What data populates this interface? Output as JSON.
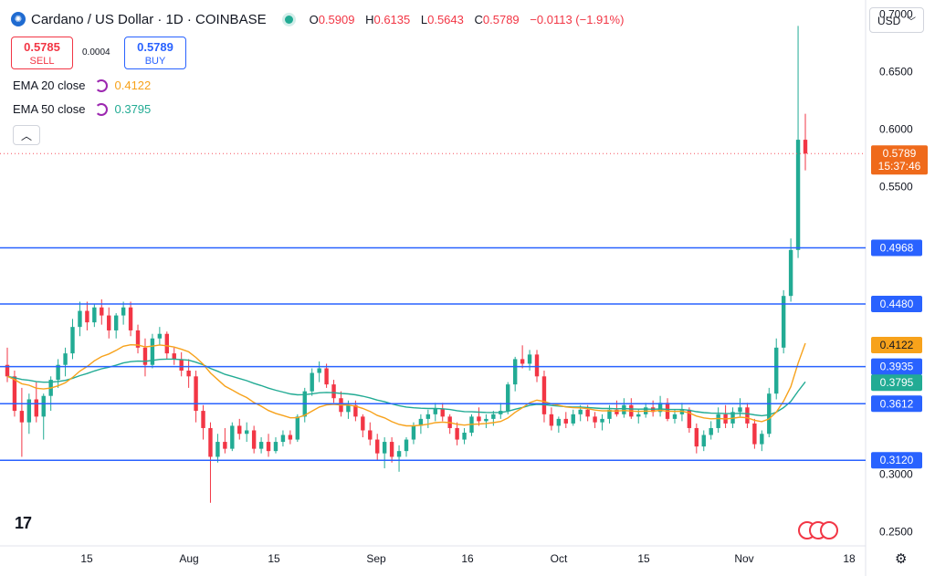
{
  "header": {
    "title": "Cardano / US Dollar · 1D · COINBASE",
    "ohlc": [
      {
        "k": "O",
        "v": "0.5909"
      },
      {
        "k": "H",
        "v": "0.6135"
      },
      {
        "k": "L",
        "v": "0.5643"
      },
      {
        "k": "C",
        "v": "0.5789"
      },
      {
        "k": "",
        "v": "−0.0113 (−1.91%)"
      }
    ]
  },
  "trade": {
    "sell_price": "0.5785",
    "sell_label": "SELL",
    "spread": "0.0004",
    "buy_price": "0.5789",
    "buy_label": "BUY"
  },
  "indicators": [
    {
      "label": "EMA 20 close",
      "value": "0.4122",
      "color": "#f7a21b"
    },
    {
      "label": "EMA 50 close",
      "value": "0.3795",
      "color": "#22ab94"
    }
  ],
  "currency": "USD",
  "colors": {
    "up": "#22ab94",
    "down": "#f23645",
    "hline": "#2962ff",
    "price": "#f7525f"
  },
  "chart_data": {
    "type": "candlestick",
    "title": "Cardano / US Dollar · 1D · COINBASE",
    "ylim": [
      0.2375,
      0.7125
    ],
    "y_ticks": [
      "0.7000",
      "0.6500",
      "0.6000",
      "0.5500",
      "0.3000",
      "0.2500"
    ],
    "x_ticks": [
      "15",
      "Aug",
      "15",
      "Sep",
      "16",
      "Oct",
      "15",
      "Nov",
      "18"
    ],
    "price_label": {
      "value": "0.5789",
      "countdown": "15:37:46",
      "color": "#f7525f"
    },
    "horizontal_lines": [
      {
        "value": 0.4968,
        "label": "0.4968"
      },
      {
        "value": 0.448,
        "label": "0.4480"
      },
      {
        "value": 0.3935,
        "label": "0.3935"
      },
      {
        "value": 0.3612,
        "label": "0.3612"
      },
      {
        "value": 0.312,
        "label": "0.3120"
      }
    ],
    "ema_labels": [
      {
        "value": 0.4122,
        "label": "0.4122",
        "color": "#f7a21b"
      },
      {
        "value": 0.3795,
        "label": "0.3795",
        "color": "#22ab94"
      }
    ],
    "candles": [
      [
        0.395,
        0.41,
        0.38,
        0.385
      ],
      [
        0.385,
        0.39,
        0.35,
        0.355
      ],
      [
        0.355,
        0.375,
        0.315,
        0.345
      ],
      [
        0.345,
        0.37,
        0.335,
        0.365
      ],
      [
        0.365,
        0.38,
        0.345,
        0.35
      ],
      [
        0.35,
        0.37,
        0.33,
        0.368
      ],
      [
        0.368,
        0.385,
        0.355,
        0.382
      ],
      [
        0.382,
        0.4,
        0.375,
        0.395
      ],
      [
        0.395,
        0.41,
        0.385,
        0.405
      ],
      [
        0.405,
        0.435,
        0.4,
        0.428
      ],
      [
        0.428,
        0.45,
        0.42,
        0.442
      ],
      [
        0.442,
        0.45,
        0.425,
        0.432
      ],
      [
        0.432,
        0.448,
        0.428,
        0.445
      ],
      [
        0.445,
        0.452,
        0.43,
        0.438
      ],
      [
        0.438,
        0.445,
        0.418,
        0.425
      ],
      [
        0.425,
        0.44,
        0.418,
        0.438
      ],
      [
        0.438,
        0.45,
        0.43,
        0.445
      ],
      [
        0.445,
        0.45,
        0.42,
        0.425
      ],
      [
        0.425,
        0.43,
        0.405,
        0.41
      ],
      [
        0.41,
        0.418,
        0.385,
        0.395
      ],
      [
        0.395,
        0.422,
        0.392,
        0.418
      ],
      [
        0.418,
        0.428,
        0.412,
        0.422
      ],
      [
        0.422,
        0.424,
        0.4,
        0.405
      ],
      [
        0.405,
        0.41,
        0.395,
        0.4
      ],
      [
        0.4,
        0.406,
        0.385,
        0.39
      ],
      [
        0.39,
        0.4,
        0.375,
        0.385
      ],
      [
        0.385,
        0.39,
        0.345,
        0.355
      ],
      [
        0.355,
        0.36,
        0.33,
        0.34
      ],
      [
        0.34,
        0.345,
        0.275,
        0.315
      ],
      [
        0.315,
        0.335,
        0.31,
        0.328
      ],
      [
        0.328,
        0.34,
        0.318,
        0.322
      ],
      [
        0.322,
        0.345,
        0.32,
        0.342
      ],
      [
        0.342,
        0.348,
        0.33,
        0.335
      ],
      [
        0.335,
        0.345,
        0.328,
        0.338
      ],
      [
        0.338,
        0.342,
        0.318,
        0.322
      ],
      [
        0.322,
        0.332,
        0.318,
        0.328
      ],
      [
        0.328,
        0.335,
        0.315,
        0.32
      ],
      [
        0.32,
        0.332,
        0.318,
        0.328
      ],
      [
        0.328,
        0.338,
        0.324,
        0.334
      ],
      [
        0.334,
        0.338,
        0.326,
        0.33
      ],
      [
        0.33,
        0.352,
        0.328,
        0.35
      ],
      [
        0.35,
        0.375,
        0.345,
        0.372
      ],
      [
        0.372,
        0.392,
        0.368,
        0.388
      ],
      [
        0.388,
        0.398,
        0.38,
        0.392
      ],
      [
        0.392,
        0.396,
        0.375,
        0.378
      ],
      [
        0.378,
        0.382,
        0.362,
        0.366
      ],
      [
        0.366,
        0.372,
        0.35,
        0.354
      ],
      [
        0.354,
        0.364,
        0.348,
        0.36
      ],
      [
        0.36,
        0.364,
        0.346,
        0.35
      ],
      [
        0.35,
        0.352,
        0.332,
        0.338
      ],
      [
        0.338,
        0.345,
        0.325,
        0.33
      ],
      [
        0.33,
        0.335,
        0.312,
        0.318
      ],
      [
        0.318,
        0.332,
        0.305,
        0.328
      ],
      [
        0.328,
        0.332,
        0.31,
        0.315
      ],
      [
        0.315,
        0.325,
        0.302,
        0.32
      ],
      [
        0.32,
        0.332,
        0.315,
        0.33
      ],
      [
        0.33,
        0.345,
        0.326,
        0.342
      ],
      [
        0.342,
        0.352,
        0.335,
        0.348
      ],
      [
        0.348,
        0.356,
        0.34,
        0.352
      ],
      [
        0.352,
        0.362,
        0.346,
        0.357
      ],
      [
        0.357,
        0.362,
        0.346,
        0.35
      ],
      [
        0.35,
        0.352,
        0.335,
        0.34
      ],
      [
        0.34,
        0.345,
        0.325,
        0.33
      ],
      [
        0.33,
        0.34,
        0.326,
        0.336
      ],
      [
        0.336,
        0.352,
        0.333,
        0.35
      ],
      [
        0.35,
        0.358,
        0.342,
        0.346
      ],
      [
        0.346,
        0.352,
        0.34,
        0.348
      ],
      [
        0.348,
        0.355,
        0.342,
        0.352
      ],
      [
        0.352,
        0.362,
        0.348,
        0.355
      ],
      [
        0.355,
        0.38,
        0.352,
        0.378
      ],
      [
        0.378,
        0.402,
        0.372,
        0.4
      ],
      [
        0.4,
        0.412,
        0.392,
        0.396
      ],
      [
        0.396,
        0.408,
        0.39,
        0.404
      ],
      [
        0.404,
        0.408,
        0.38,
        0.385
      ],
      [
        0.385,
        0.39,
        0.345,
        0.352
      ],
      [
        0.352,
        0.358,
        0.338,
        0.342
      ],
      [
        0.342,
        0.35,
        0.336,
        0.348
      ],
      [
        0.348,
        0.354,
        0.34,
        0.344
      ],
      [
        0.344,
        0.356,
        0.342,
        0.352
      ],
      [
        0.352,
        0.36,
        0.346,
        0.356
      ],
      [
        0.356,
        0.36,
        0.346,
        0.35
      ],
      [
        0.35,
        0.354,
        0.34,
        0.345
      ],
      [
        0.345,
        0.352,
        0.338,
        0.348
      ],
      [
        0.348,
        0.36,
        0.344,
        0.356
      ],
      [
        0.356,
        0.364,
        0.35,
        0.352
      ],
      [
        0.352,
        0.366,
        0.349,
        0.36
      ],
      [
        0.36,
        0.366,
        0.348,
        0.35
      ],
      [
        0.35,
        0.356,
        0.344,
        0.352
      ],
      [
        0.352,
        0.362,
        0.349,
        0.358
      ],
      [
        0.358,
        0.364,
        0.35,
        0.354
      ],
      [
        0.354,
        0.368,
        0.35,
        0.362
      ],
      [
        0.362,
        0.366,
        0.346,
        0.348
      ],
      [
        0.348,
        0.356,
        0.344,
        0.352
      ],
      [
        0.352,
        0.362,
        0.346,
        0.356
      ],
      [
        0.356,
        0.358,
        0.336,
        0.34
      ],
      [
        0.34,
        0.344,
        0.318,
        0.324
      ],
      [
        0.324,
        0.338,
        0.32,
        0.334
      ],
      [
        0.334,
        0.346,
        0.33,
        0.34
      ],
      [
        0.34,
        0.358,
        0.336,
        0.352
      ],
      [
        0.352,
        0.36,
        0.34,
        0.344
      ],
      [
        0.344,
        0.358,
        0.34,
        0.354
      ],
      [
        0.354,
        0.366,
        0.35,
        0.358
      ],
      [
        0.358,
        0.362,
        0.34,
        0.344
      ],
      [
        0.344,
        0.348,
        0.322,
        0.326
      ],
      [
        0.326,
        0.338,
        0.32,
        0.335
      ],
      [
        0.335,
        0.375,
        0.332,
        0.37
      ],
      [
        0.37,
        0.418,
        0.365,
        0.41
      ],
      [
        0.41,
        0.46,
        0.405,
        0.455
      ],
      [
        0.455,
        0.505,
        0.45,
        0.495
      ],
      [
        0.495,
        0.69,
        0.488,
        0.5909
      ],
      [
        0.5909,
        0.6135,
        0.5643,
        0.5789
      ]
    ]
  }
}
